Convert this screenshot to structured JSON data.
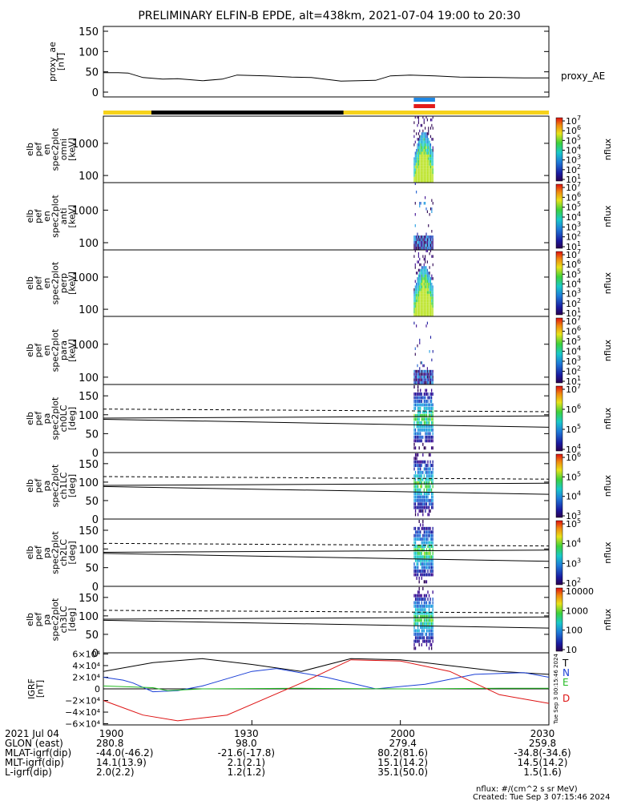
{
  "title": "PRELIMINARY ELFIN-B EPDE, alt=438km, 2021-07-04 19:00 to 20:30",
  "chart_data": [
    {
      "type": "line",
      "panel": "proxy_ae",
      "ylabel": [
        "proxy_ae",
        "[nT]"
      ],
      "legend": "proxy_AE",
      "ylim": [
        0,
        150
      ],
      "yticks": [
        0,
        50,
        100,
        150
      ],
      "x": [
        0,
        3,
        5,
        8,
        12,
        15,
        20,
        24,
        27,
        33,
        38,
        42,
        48,
        55,
        58,
        62,
        67,
        72,
        80,
        85,
        90
      ],
      "values": [
        48,
        48,
        47,
        36,
        32,
        33,
        28,
        32,
        42,
        40,
        37,
        36,
        27,
        29,
        40,
        42,
        40,
        37,
        36,
        35,
        35
      ]
    },
    {
      "type": "spectrogram",
      "panel": "omni",
      "ylabel": [
        "elb",
        "pef",
        "en",
        "spec2plot",
        "omni",
        "[keV]"
      ],
      "ylog": true,
      "ylim": [
        60,
        7000
      ],
      "yticks": [
        100,
        1000
      ],
      "zlabel": "nflux",
      "zticks": [
        "10^1",
        "10^2",
        "10^3",
        "10^4",
        "10^5",
        "10^6",
        "10^7"
      ],
      "active_interval_min": [
        62.7,
        66.7
      ]
    },
    {
      "type": "spectrogram",
      "panel": "anti",
      "ylabel": [
        "elb",
        "pef",
        "en",
        "spec2plot",
        "anti",
        "[keV]"
      ],
      "ylog": true,
      "ylim": [
        60,
        7000
      ],
      "yticks": [
        100,
        1000
      ],
      "zlabel": "nflux",
      "zticks": [
        "10^1",
        "10^2",
        "10^3",
        "10^4",
        "10^5",
        "10^6",
        "10^7"
      ],
      "active_interval_min": [
        62.7,
        66.7
      ]
    },
    {
      "type": "spectrogram",
      "panel": "perp",
      "ylabel": [
        "elb",
        "pef",
        "en",
        "spec2plot",
        "perp",
        "[keV]"
      ],
      "ylog": true,
      "ylim": [
        60,
        7000
      ],
      "yticks": [
        100,
        1000
      ],
      "zlabel": "nflux",
      "zticks": [
        "10^1",
        "10^2",
        "10^3",
        "10^4",
        "10^5",
        "10^6",
        "10^7"
      ],
      "active_interval_min": [
        62.7,
        66.7
      ]
    },
    {
      "type": "spectrogram",
      "panel": "para",
      "ylabel": [
        "elb",
        "pef",
        "en",
        "spec2plot",
        "para",
        "[keV]"
      ],
      "ylog": true,
      "ylim": [
        60,
        7000
      ],
      "yticks": [
        100,
        1000
      ],
      "zlabel": "nflux",
      "zticks": [
        "10^1",
        "10^2",
        "10^3",
        "10^4",
        "10^5",
        "10^6",
        "10^7"
      ],
      "active_interval_min": [
        62.7,
        66.7
      ]
    },
    {
      "type": "spectrogram",
      "panel": "ch0LC",
      "ylabel": [
        "elb",
        "pef",
        "pa",
        "spec2plot",
        "ch0LC",
        "[deg]"
      ],
      "ylim": [
        0,
        180
      ],
      "yticks": [
        0,
        50,
        100,
        150
      ],
      "zlabel": "nflux",
      "zticks": [
        "10^4",
        "10^5",
        "10^6",
        "10^7"
      ],
      "active_interval_min": [
        62.7,
        66.7
      ]
    },
    {
      "type": "spectrogram",
      "panel": "ch1LC",
      "ylabel": [
        "elb",
        "pef",
        "pa",
        "spec2plot",
        "ch1LC",
        "[deg]"
      ],
      "ylim": [
        0,
        180
      ],
      "yticks": [
        0,
        50,
        100,
        150
      ],
      "zlabel": "nflux",
      "zticks": [
        "10^3",
        "10^4",
        "10^5",
        "10^6"
      ],
      "active_interval_min": [
        62.7,
        66.7
      ]
    },
    {
      "type": "spectrogram",
      "panel": "ch2LC",
      "ylabel": [
        "elb",
        "pef",
        "pa",
        "spec2plot",
        "ch2LC",
        "[deg]"
      ],
      "ylim": [
        0,
        180
      ],
      "yticks": [
        0,
        50,
        100,
        150
      ],
      "zlabel": "nflux",
      "zticks": [
        "10^2",
        "10^3",
        "10^4",
        "10^5"
      ],
      "active_interval_min": [
        62.7,
        66.7
      ]
    },
    {
      "type": "spectrogram",
      "panel": "ch3LC",
      "ylabel": [
        "elb",
        "pef",
        "pa",
        "spec2plot",
        "ch3LC",
        "[deg]"
      ],
      "ylim": [
        0,
        180
      ],
      "yticks": [
        0,
        50,
        100,
        150
      ],
      "zlabel": "nflux",
      "zticks": [
        "10",
        "100",
        "1000",
        "10000"
      ],
      "active_interval_min": [
        62.7,
        66.7
      ]
    },
    {
      "type": "line",
      "panel": "IGRF",
      "ylabel": [
        "IGRF",
        "[nT]"
      ],
      "ylim": [
        -62000,
        62000
      ],
      "yticks": [
        "6×10⁴",
        "4×10⁴",
        "2×10⁴",
        "0",
        "−2×10⁴",
        "−4×10⁴",
        "−6×10⁴"
      ],
      "ytick_values": [
        60000,
        40000,
        20000,
        0,
        -20000,
        -40000,
        -60000
      ],
      "series": [
        {
          "name": "T",
          "color": "#000000",
          "x": [
            0,
            10,
            20,
            30,
            40,
            50,
            60,
            70,
            80,
            90
          ],
          "values": [
            30000,
            45000,
            52000,
            42000,
            30000,
            52000,
            50000,
            40000,
            30000,
            25000
          ]
        },
        {
          "name": "N",
          "color": "#1a3fd6",
          "x": [
            0,
            4,
            6,
            10,
            15,
            20,
            30,
            35,
            45,
            55,
            65,
            75,
            85,
            90
          ],
          "values": [
            20000,
            15000,
            10000,
            -5000,
            -3000,
            5000,
            30000,
            35000,
            20000,
            0,
            8000,
            25000,
            28000,
            20000
          ]
        },
        {
          "name": "E",
          "color": "#22bb22",
          "x": [
            0,
            10,
            13,
            20,
            40,
            60,
            80,
            90
          ],
          "values": [
            5000,
            2000,
            -3000,
            0,
            1000,
            0,
            1000,
            1000
          ]
        },
        {
          "name": "D",
          "color": "#dd1111",
          "x": [
            0,
            8,
            15,
            25,
            40,
            50,
            60,
            70,
            80,
            90
          ],
          "values": [
            -20000,
            -45000,
            -55000,
            -45000,
            10000,
            50000,
            48000,
            30000,
            -10000,
            -25000
          ]
        }
      ]
    }
  ],
  "xaxis": {
    "time_ticks": [
      "1900",
      "1930",
      "2000",
      "2030"
    ],
    "date_label": "2021 Jul 04",
    "rows": [
      {
        "label": "GLON (east)",
        "values": [
          "280.8",
          "98.0",
          "279.4",
          "259.8"
        ]
      },
      {
        "label": "MLAT-igrf(dip)",
        "values": [
          "-44.0(-46.2)",
          "-21.6(-17.8)",
          "80.2(81.6)",
          "-34.8(-34.6)"
        ]
      },
      {
        "label": "MLT-igrf(dip)",
        "values": [
          "14.1(13.9)",
          "2.1(2.1)",
          "15.1(14.2)",
          "14.5(14.2)"
        ]
      },
      {
        "label": "L-igrf(dip)",
        "values": [
          "2.0(2.2)",
          "1.2(1.2)",
          "35.1(50.0)",
          "1.5(1.6)"
        ]
      }
    ]
  },
  "footer": {
    "units": "nflux: #/(cm^2 s sr MeV)",
    "created": "Created: Tue Sep  3 07:15:46 2024",
    "side_stamp": "Tue Sep  3 00:15:46 2024"
  },
  "colors": {
    "bar_yellow": "#f6d21b",
    "bar_black": "#000000",
    "bar_blue": "#1e88e5",
    "bar_red": "#e21b1b"
  }
}
